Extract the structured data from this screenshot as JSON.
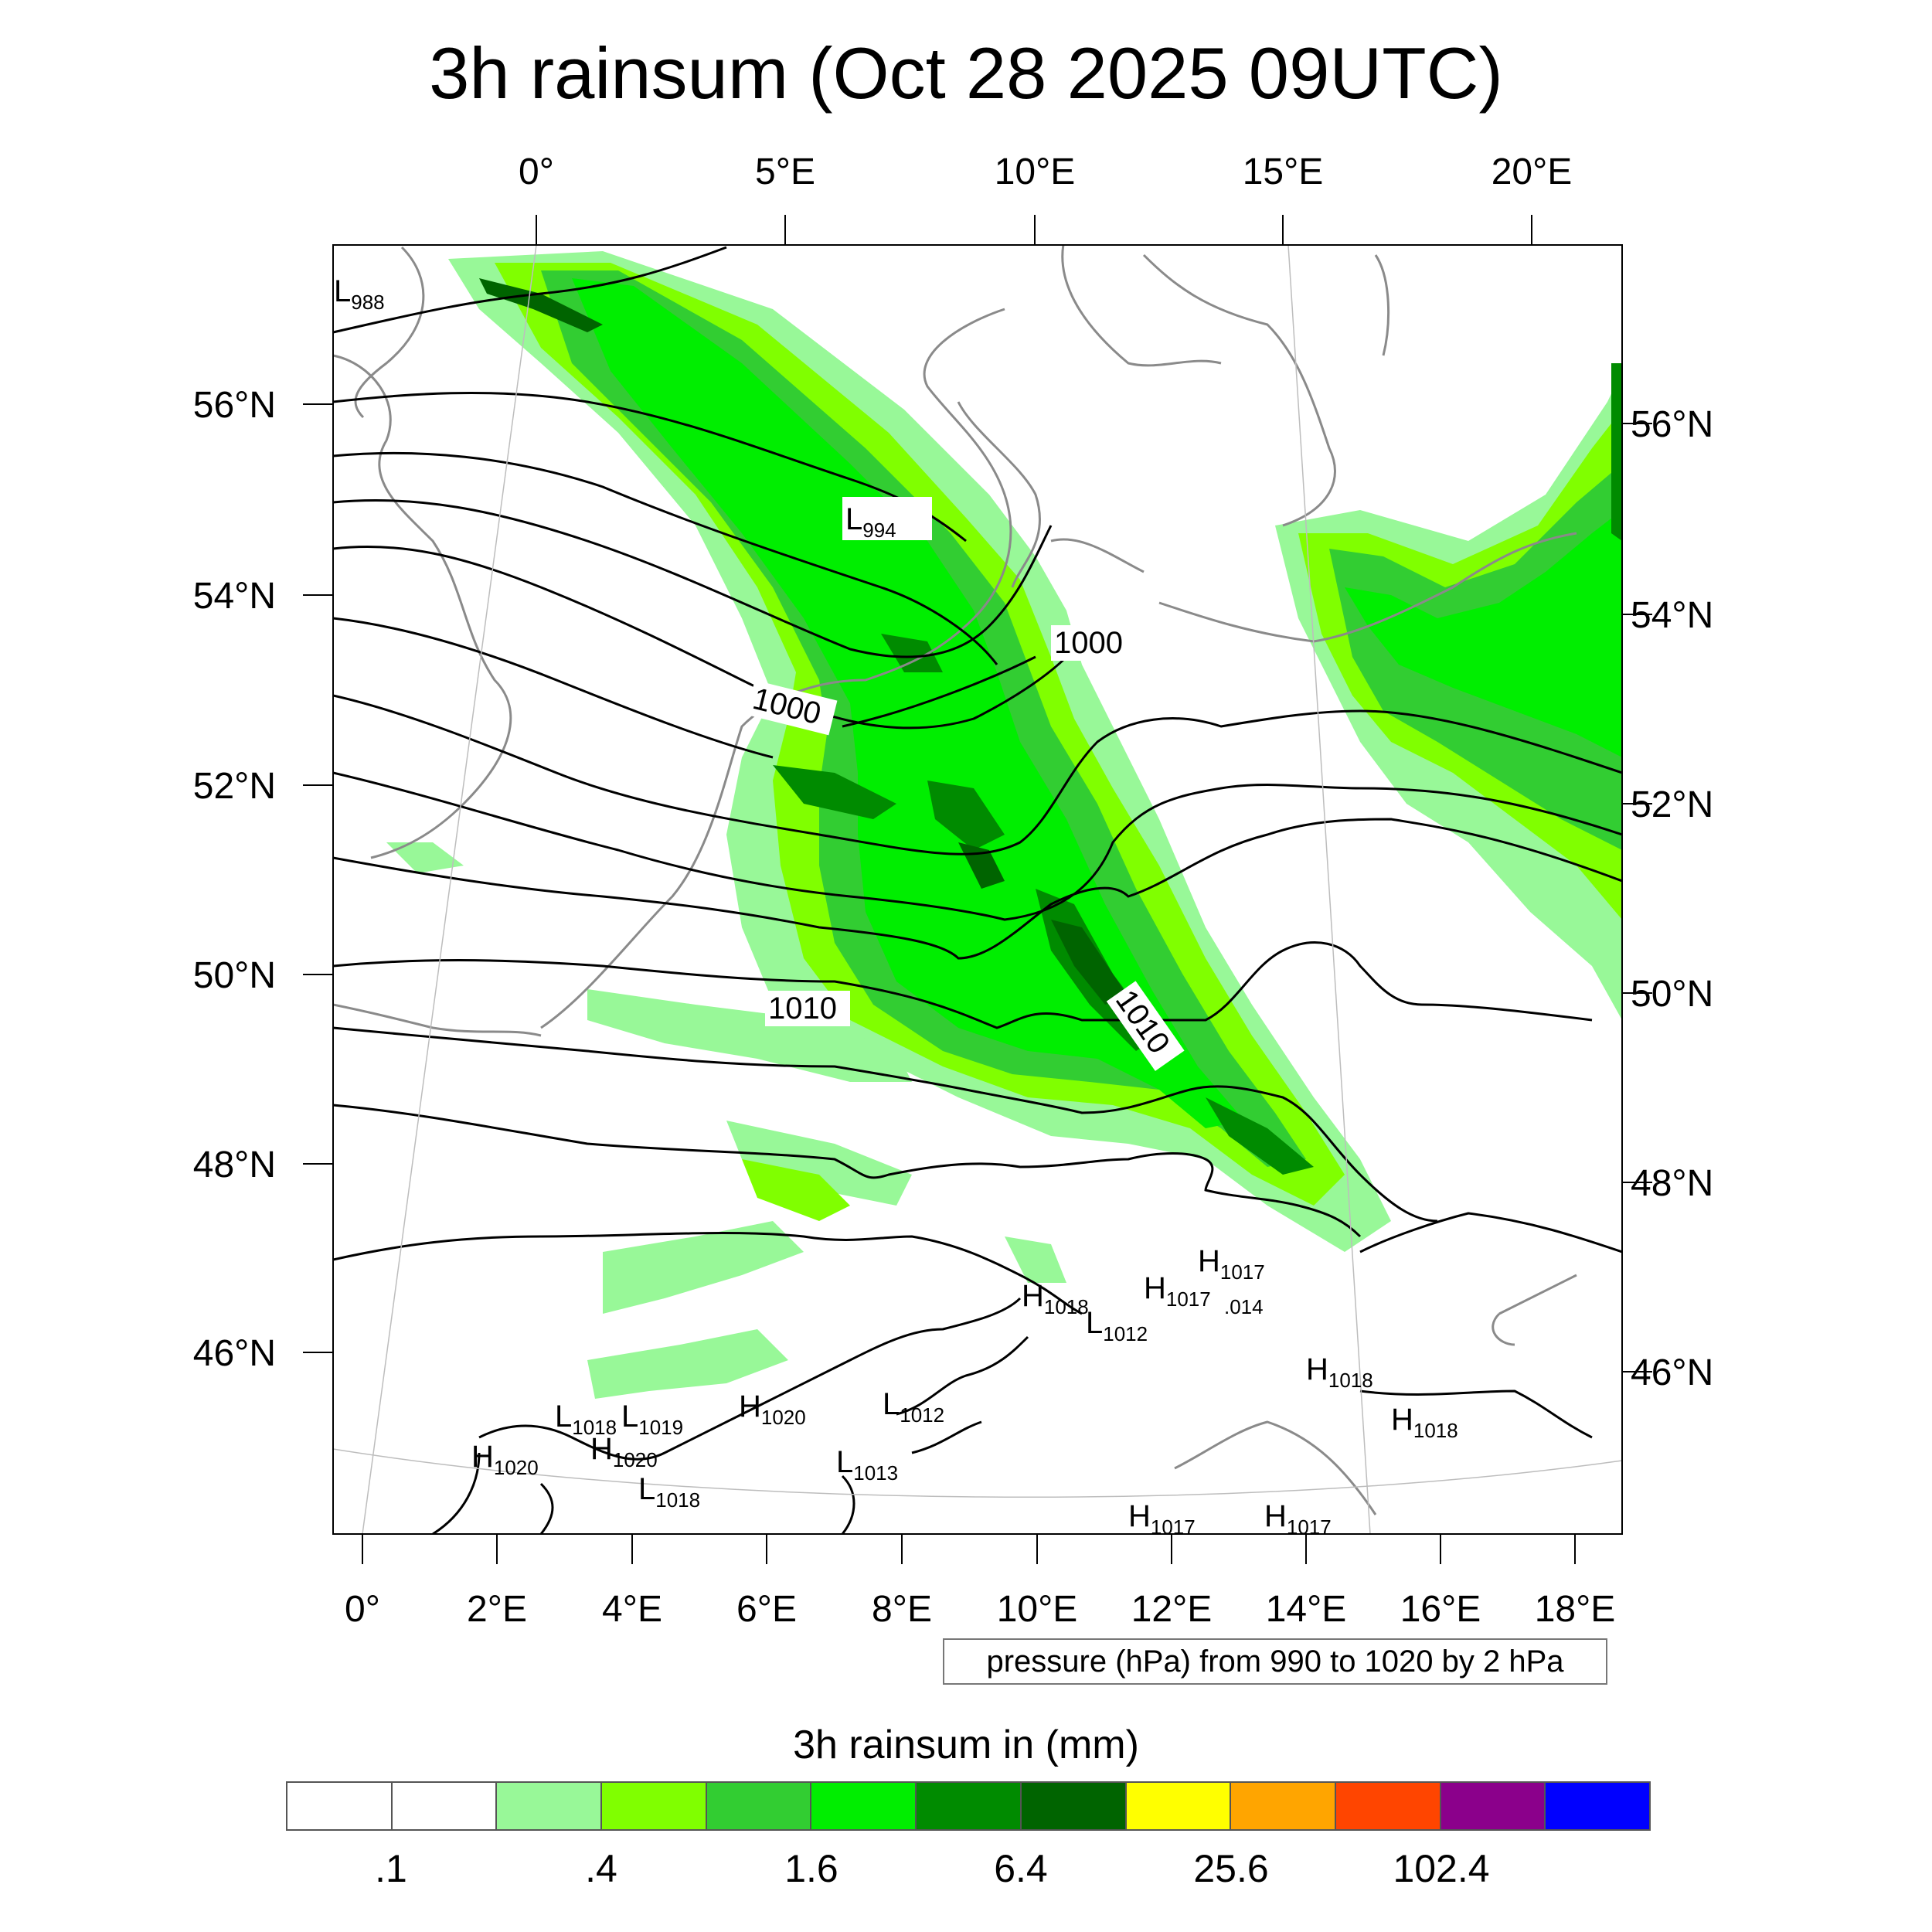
{
  "title": "3h rainsum (Oct 28 2025 09UTC)",
  "top_axis_labels": [
    "0°",
    "5°E",
    "10°E",
    "15°E",
    "20°E"
  ],
  "bottom_axis_labels": [
    "0°",
    "2°E",
    "4°E",
    "6°E",
    "8°E",
    "10°E",
    "12°E",
    "14°E",
    "16°E",
    "18°E"
  ],
  "left_axis_labels": [
    "56°N",
    "54°N",
    "52°N",
    "50°N",
    "48°N",
    "46°N"
  ],
  "right_axis_labels": [
    "56°N",
    "54°N",
    "52°N",
    "50°N",
    "48°N",
    "46°N"
  ],
  "contour_labels": [
    "1000",
    "1000",
    "1010",
    "1010"
  ],
  "pressure_centers": [
    {
      "letter": "L",
      "value": "988"
    },
    {
      "letter": "L",
      "value": "994"
    },
    {
      "letter": "H",
      "value": "1017"
    },
    {
      "letter": "H",
      "value": "1017"
    },
    {
      "letter": "",
      "value": ".014"
    },
    {
      "letter": "H",
      "value": "1018"
    },
    {
      "letter": "L",
      "value": "1012"
    },
    {
      "letter": "H",
      "value": "1018"
    },
    {
      "letter": "H",
      "value": "1018"
    },
    {
      "letter": "L",
      "value": "1018"
    },
    {
      "letter": "L",
      "value": "1019"
    },
    {
      "letter": "H",
      "value": "1020"
    },
    {
      "letter": "L",
      "value": "1012"
    },
    {
      "letter": "H",
      "value": "1020"
    },
    {
      "letter": "H",
      "value": "1020"
    },
    {
      "letter": "L",
      "value": "1013"
    },
    {
      "letter": "L",
      "value": "1018"
    },
    {
      "letter": "H",
      "value": "1017"
    },
    {
      "letter": "H",
      "value": "1017"
    }
  ],
  "contour_note": "pressure (hPa) from 990 to 1020 by 2 hPa",
  "legend": {
    "title": "3h rainsum in (mm)",
    "colors": [
      "#ffffff",
      "#ffffff",
      "#98f898",
      "#80ff00",
      "#32cd32",
      "#00ee00",
      "#008b00",
      "#006400",
      "#ffff00",
      "#ffa500",
      "#ff4500",
      "#8b008b",
      "#0000ff"
    ],
    "labels": [
      ".1",
      ".4",
      "1.6",
      "6.4",
      "25.6",
      "102.4"
    ]
  },
  "colors": {
    "rain_light": "#98f898",
    "rain_lime": "#80ff00",
    "rain_mid": "#32cd32",
    "rain_bright": "#00ee00",
    "rain_dark": "#008b00",
    "rain_darker": "#006400",
    "coast": "#8a8a8a",
    "isobar": "#000000"
  }
}
